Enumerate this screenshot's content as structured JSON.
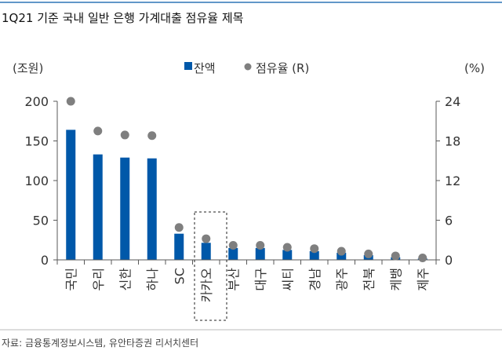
{
  "source": "자료: 금융통계정보시스템, 유안타증권 리서치센터",
  "colors": {
    "bar": "#0058A9",
    "dot": "#7F7F7F",
    "axis": "#595959",
    "top_rule": "#2E75B6"
  },
  "chart_data": {
    "type": "bar",
    "title": "1Q21 기준 국내 일반 은행 가계대출 점유율 제목",
    "ylabel": "(조원)",
    "y2label": "(%)",
    "ylim": [
      0,
      200
    ],
    "yticks": [
      0,
      50,
      100,
      150,
      200
    ],
    "y2lim": [
      0,
      24
    ],
    "y2ticks": [
      0,
      6,
      12,
      18,
      24
    ],
    "legend_position": "top-center",
    "highlight_category": "카카오",
    "categories": [
      "국민",
      "우리",
      "신한",
      "하나",
      "SC",
      "카카오",
      "부산",
      "대구",
      "씨티",
      "경남",
      "광주",
      "전북",
      "케뱅",
      "제주"
    ],
    "series": [
      {
        "name": "잔액",
        "type": "bar",
        "axis": "left",
        "values": [
          164,
          133,
          129,
          128,
          33,
          21.5,
          15,
          15,
          12.5,
          11,
          9,
          6,
          3.3,
          1.7
        ]
      },
      {
        "name": "점유율 (R)",
        "type": "scatter",
        "axis": "right",
        "values": [
          24.0,
          19.5,
          18.9,
          18.8,
          4.9,
          3.2,
          2.2,
          2.2,
          1.9,
          1.7,
          1.3,
          0.9,
          0.6,
          0.3
        ]
      }
    ]
  }
}
